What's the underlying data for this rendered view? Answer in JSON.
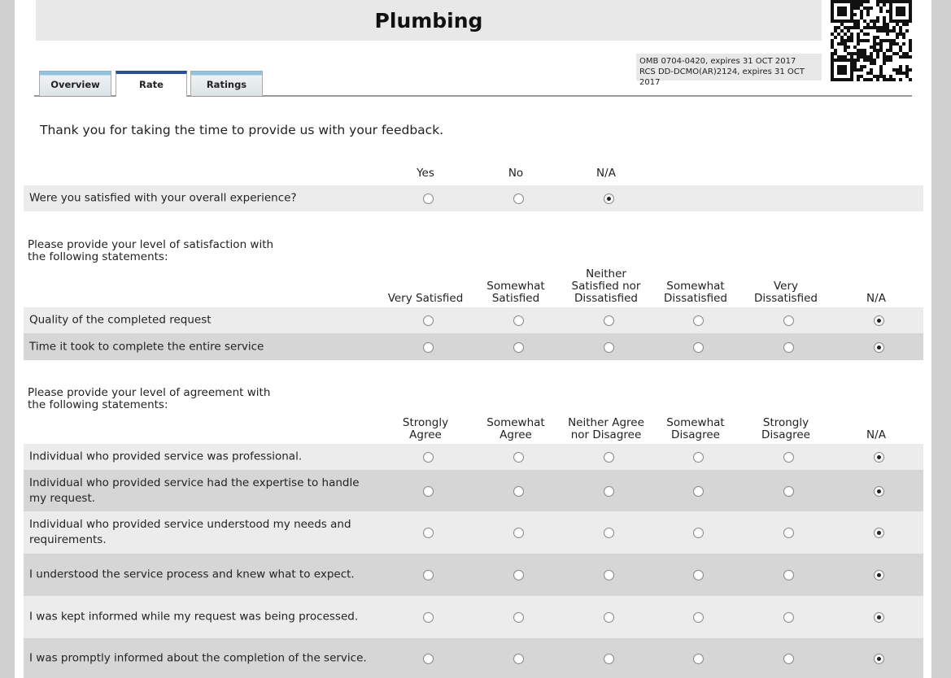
{
  "header": {
    "title": "Plumbing"
  },
  "notice": [
    "OMB 0704-0420, expires 31 OCT 2017",
    "RCS DD-DCMO(AR)2124, expires 31 OCT 2017"
  ],
  "tabs": [
    {
      "label": "Overview"
    },
    {
      "label": "Rate",
      "active": true
    },
    {
      "label": "Ratings"
    }
  ],
  "intro": "Thank you for taking the time to provide us with your feedback.",
  "sections": [
    {
      "columns": [
        [
          "Yes"
        ],
        [
          "No"
        ],
        [
          "N/A"
        ]
      ],
      "rows": [
        {
          "question": "Were you satisfied with your overall experience?",
          "selected": 2
        }
      ]
    },
    {
      "prompt": [
        "Please provide your level of satisfaction with",
        "the following statements:"
      ],
      "columns": [
        [
          "Very Satisfied"
        ],
        [
          "Somewhat",
          "Satisfied"
        ],
        [
          "Neither",
          "Satisfied nor",
          "Dissatisfied"
        ],
        [
          "Somewhat",
          "Dissatisfied"
        ],
        [
          "Very",
          "Dissatisfied"
        ],
        [
          "N/A"
        ]
      ],
      "rows": [
        {
          "question": "Quality of the completed request",
          "selected": 5
        },
        {
          "question": "Time it took to complete the entire service",
          "selected": 5
        }
      ]
    },
    {
      "prompt": [
        "Please provide your level of agreement with",
        "the following statements:"
      ],
      "columns": [
        [
          "Strongly",
          "Agree"
        ],
        [
          "Somewhat",
          "Agree"
        ],
        [
          "Neither Agree",
          "nor Disagree"
        ],
        [
          "Somewhat",
          "Disagree"
        ],
        [
          "Strongly",
          "Disagree"
        ],
        [
          "N/A"
        ]
      ],
      "rows": [
        {
          "question": "Individual who provided service was professional.",
          "selected": 5
        },
        {
          "question": "Individual who provided service had the expertise to handle my request.",
          "selected": 5
        },
        {
          "question": "Individual who provided service understood my needs and requirements.",
          "selected": 5
        },
        {
          "question": "I understood the service process and knew what to expect.",
          "selected": 5
        },
        {
          "question": "I was kept informed while my request was being processed.",
          "selected": 5
        },
        {
          "question": "I was promptly informed about the completion of the service.",
          "selected": 5
        }
      ]
    }
  ]
}
